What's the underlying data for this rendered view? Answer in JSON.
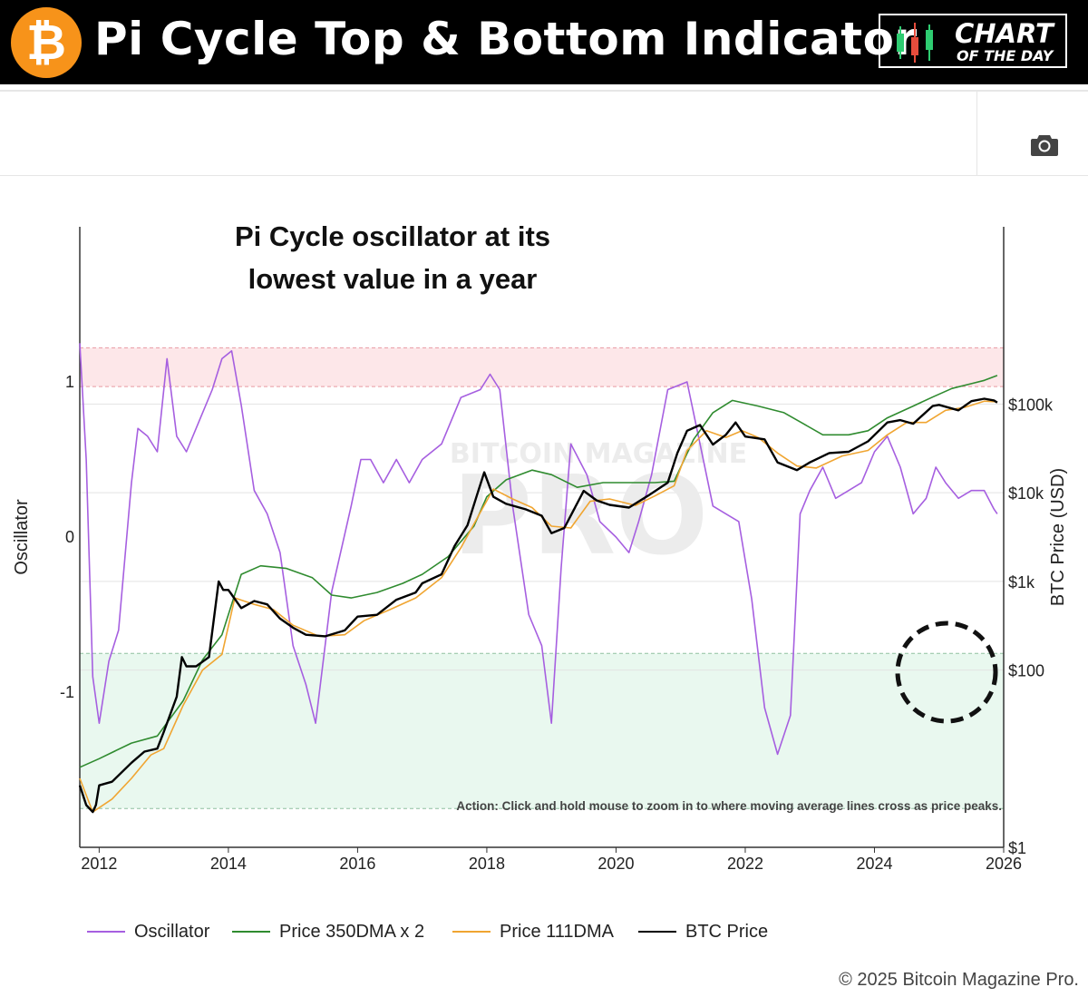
{
  "header": {
    "btc_symbol": "₿",
    "title": "Pi Cycle Top & Bottom Indicator",
    "badge_line1": "CHART",
    "badge_line2": "OF THE DAY"
  },
  "toolbar": {
    "camera_icon": "camera-icon"
  },
  "colors": {
    "oscillator": "#a65fe0",
    "dma350x2": "#2f8b2f",
    "dma111": "#f0a531",
    "btc": "#000000",
    "top_zone": "#fde7e9",
    "bottom_zone": "#e9f8ef",
    "orange": "#f7931a"
  },
  "chart_data": {
    "type": "line",
    "annotation": [
      "Pi Cycle oscillator at its",
      "lowest value in a year"
    ],
    "action_text": "Action: Click and hold mouse to zoom in to where moving average lines cross as price peaks.",
    "watermark": "PRO",
    "watermark_sub": "BITCOIN MAGAZINE",
    "xlabel": "",
    "x_ticks": [
      "2012",
      "2014",
      "2016",
      "2018",
      "2020",
      "2022",
      "2024",
      "2026"
    ],
    "x_range": [
      2011.7,
      2026.0
    ],
    "left_axis": {
      "label": "Oscillator",
      "ticks": [
        "1",
        "0",
        "-1"
      ],
      "tick_values": [
        1,
        0,
        -1
      ],
      "range": [
        -2.0,
        2.0
      ]
    },
    "right_axis": {
      "label": "BTC Price (USD)",
      "ticks": [
        "$100k",
        "$10k",
        "$1k",
        "$100",
        "$1"
      ],
      "tick_values": [
        100000,
        10000,
        1000,
        100,
        1
      ],
      "scale": "log",
      "range": [
        1,
        10000000
      ]
    },
    "zones": {
      "top": [
        0.97,
        1.22
      ],
      "bottom": [
        -1.75,
        -0.75
      ]
    },
    "series": [
      {
        "name": "BTC Price",
        "axis": "right",
        "x": [
          2011.7,
          2011.8,
          2011.9,
          2011.95,
          2012.0,
          2012.2,
          2012.5,
          2012.7,
          2012.9,
          2013.0,
          2013.2,
          2013.28,
          2013.35,
          2013.5,
          2013.7,
          2013.85,
          2013.92,
          2014.0,
          2014.2,
          2014.4,
          2014.6,
          2014.8,
          2015.0,
          2015.2,
          2015.5,
          2015.8,
          2016.0,
          2016.3,
          2016.6,
          2016.9,
          2017.0,
          2017.3,
          2017.5,
          2017.7,
          2017.85,
          2017.96,
          2018.1,
          2018.3,
          2018.6,
          2018.85,
          2019.0,
          2019.2,
          2019.5,
          2019.7,
          2019.9,
          2020.2,
          2020.5,
          2020.8,
          2020.95,
          2021.1,
          2021.3,
          2021.5,
          2021.7,
          2021.85,
          2022.0,
          2022.3,
          2022.5,
          2022.8,
          2023.0,
          2023.3,
          2023.6,
          2023.9,
          2024.2,
          2024.4,
          2024.6,
          2024.9,
          2025.0,
          2025.3,
          2025.5,
          2025.7,
          2025.85,
          2025.9
        ],
        "values": [
          5,
          3,
          2.5,
          3,
          5,
          5.5,
          9,
          12,
          13,
          20,
          50,
          140,
          110,
          110,
          140,
          1000,
          800,
          800,
          500,
          600,
          550,
          380,
          300,
          250,
          240,
          280,
          400,
          420,
          620,
          750,
          950,
          1200,
          2500,
          4300,
          9500,
          17000,
          9000,
          7500,
          6500,
          5500,
          3500,
          4000,
          10500,
          8200,
          7300,
          6800,
          9300,
          13000,
          28000,
          50000,
          58000,
          35000,
          45000,
          62000,
          43000,
          40000,
          22000,
          18000,
          22000,
          28000,
          29000,
          38000,
          62000,
          66000,
          60000,
          95000,
          98000,
          85000,
          108000,
          115000,
          110000,
          104000
        ]
      },
      {
        "name": "Price 111DMA",
        "axis": "right",
        "x": [
          2011.7,
          2011.9,
          2012.2,
          2012.5,
          2012.8,
          2013.0,
          2013.3,
          2013.6,
          2013.9,
          2014.1,
          2014.4,
          2014.7,
          2015.0,
          2015.4,
          2015.8,
          2016.1,
          2016.5,
          2016.9,
          2017.3,
          2017.6,
          2017.9,
          2018.1,
          2018.4,
          2018.7,
          2019.0,
          2019.3,
          2019.6,
          2019.9,
          2020.3,
          2020.6,
          2020.9,
          2021.1,
          2021.4,
          2021.7,
          2021.95,
          2022.2,
          2022.5,
          2022.8,
          2023.1,
          2023.5,
          2023.9,
          2024.2,
          2024.5,
          2024.8,
          2025.1,
          2025.4,
          2025.7,
          2025.9
        ],
        "values": [
          6,
          2.5,
          3.5,
          6,
          11,
          13,
          40,
          100,
          150,
          650,
          550,
          480,
          320,
          240,
          250,
          360,
          480,
          650,
          1100,
          2400,
          6000,
          11000,
          8500,
          6800,
          4200,
          4000,
          8000,
          8500,
          7200,
          9200,
          12000,
          30000,
          50000,
          42000,
          50000,
          42000,
          28000,
          20000,
          19000,
          26000,
          30000,
          45000,
          62000,
          62000,
          85000,
          92000,
          108000,
          106000
        ]
      },
      {
        "name": "Price 350DMA x 2",
        "axis": "right",
        "x": [
          2011.7,
          2012.0,
          2012.5,
          2012.9,
          2013.3,
          2013.6,
          2013.9,
          2014.2,
          2014.5,
          2014.9,
          2015.3,
          2015.6,
          2015.9,
          2016.3,
          2016.7,
          2017.0,
          2017.4,
          2017.8,
          2018.0,
          2018.3,
          2018.7,
          2019.0,
          2019.4,
          2019.8,
          2020.2,
          2020.6,
          2020.9,
          2021.2,
          2021.5,
          2021.8,
          2022.2,
          2022.6,
          2022.9,
          2023.2,
          2023.6,
          2023.9,
          2024.2,
          2024.6,
          2024.9,
          2025.2,
          2025.5,
          2025.7,
          2025.9
        ],
        "values": [
          8,
          10,
          15,
          18,
          45,
          130,
          250,
          1200,
          1500,
          1400,
          1100,
          700,
          650,
          750,
          950,
          1200,
          1900,
          4200,
          9000,
          14000,
          18000,
          16000,
          11500,
          13000,
          13000,
          13000,
          13500,
          40000,
          80000,
          110000,
          95000,
          80000,
          60000,
          45000,
          45000,
          50000,
          70000,
          95000,
          120000,
          150000,
          170000,
          185000,
          210000
        ]
      },
      {
        "name": "Oscillator",
        "axis": "left",
        "x": [
          2011.7,
          2011.8,
          2011.9,
          2012.0,
          2012.15,
          2012.3,
          2012.5,
          2012.6,
          2012.75,
          2012.9,
          2013.05,
          2013.2,
          2013.35,
          2013.55,
          2013.75,
          2013.9,
          2014.05,
          2014.2,
          2014.4,
          2014.6,
          2014.8,
          2015.0,
          2015.2,
          2015.35,
          2015.6,
          2015.9,
          2016.05,
          2016.2,
          2016.4,
          2016.6,
          2016.8,
          2017.0,
          2017.3,
          2017.6,
          2017.9,
          2018.05,
          2018.2,
          2018.4,
          2018.65,
          2018.85,
          2019.0,
          2019.15,
          2019.3,
          2019.55,
          2019.75,
          2020.0,
          2020.2,
          2020.35,
          2020.55,
          2020.8,
          2021.1,
          2021.3,
          2021.5,
          2021.7,
          2021.9,
          2022.1,
          2022.3,
          2022.5,
          2022.7,
          2022.85,
          2023.0,
          2023.2,
          2023.4,
          2023.6,
          2023.8,
          2024.0,
          2024.2,
          2024.4,
          2024.6,
          2024.8,
          2024.95,
          2025.1,
          2025.3,
          2025.5,
          2025.7,
          2025.85,
          2025.9
        ],
        "values": [
          1.25,
          0.5,
          -0.9,
          -1.2,
          -0.8,
          -0.6,
          0.35,
          0.7,
          0.65,
          0.55,
          1.15,
          0.65,
          0.55,
          0.75,
          0.95,
          1.15,
          1.2,
          0.85,
          0.3,
          0.15,
          -0.1,
          -0.7,
          -0.95,
          -1.2,
          -0.35,
          0.2,
          0.5,
          0.5,
          0.35,
          0.5,
          0.35,
          0.5,
          0.6,
          0.9,
          0.95,
          1.05,
          0.95,
          0.2,
          -0.5,
          -0.7,
          -1.2,
          -0.2,
          0.6,
          0.4,
          0.1,
          0.0,
          -0.1,
          0.1,
          0.4,
          0.95,
          1.0,
          0.6,
          0.2,
          0.15,
          0.1,
          -0.4,
          -1.1,
          -1.4,
          -1.15,
          0.15,
          0.3,
          0.45,
          0.25,
          0.3,
          0.35,
          0.55,
          0.65,
          0.45,
          0.15,
          0.25,
          0.45,
          0.35,
          0.25,
          0.3,
          0.3,
          0.18,
          0.15
        ]
      }
    ],
    "legend_position": "bottom"
  },
  "legend": [
    {
      "label": "Oscillator"
    },
    {
      "label": "Price 350DMA x 2"
    },
    {
      "label": "Price 111DMA"
    },
    {
      "label": "BTC Price"
    }
  ],
  "footer": {
    "copyright": "© 2025 Bitcoin Magazine Pro."
  }
}
